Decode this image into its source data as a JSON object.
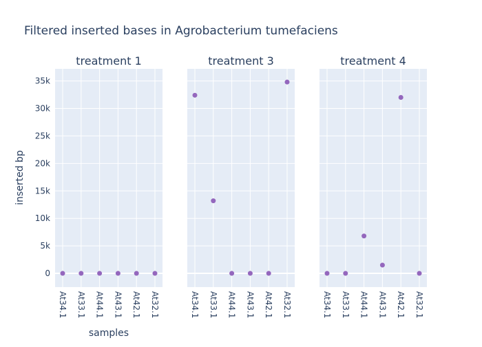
{
  "chart_data": {
    "type": "scatter",
    "title": "Filtered inserted bases in Agrobacterium tumefaciens",
    "xlabel": "samples",
    "ylabel": "inserted bp",
    "ylim": [
      -2500,
      37200
    ],
    "yticks": [
      0,
      5000,
      10000,
      15000,
      20000,
      25000,
      30000,
      35000
    ],
    "ytick_labels": [
      "0",
      "5k",
      "10k",
      "15k",
      "20k",
      "25k",
      "30k",
      "35k"
    ],
    "categories": [
      "At34.1",
      "At33.1",
      "At44.1",
      "At43.1",
      "At42.1",
      "At32.1"
    ],
    "grid": true,
    "marker_color": "#9467bd",
    "plot_bg_color": "#e5ecf6",
    "panels": [
      {
        "name": "treatment 1",
        "values": [
          0,
          0,
          0,
          0,
          0,
          0
        ]
      },
      {
        "name": "treatment 3",
        "values": [
          32400,
          13200,
          0,
          0,
          0,
          34800
        ]
      },
      {
        "name": "treatment 4",
        "values": [
          0,
          0,
          6800,
          1500,
          32000,
          0
        ]
      }
    ]
  }
}
